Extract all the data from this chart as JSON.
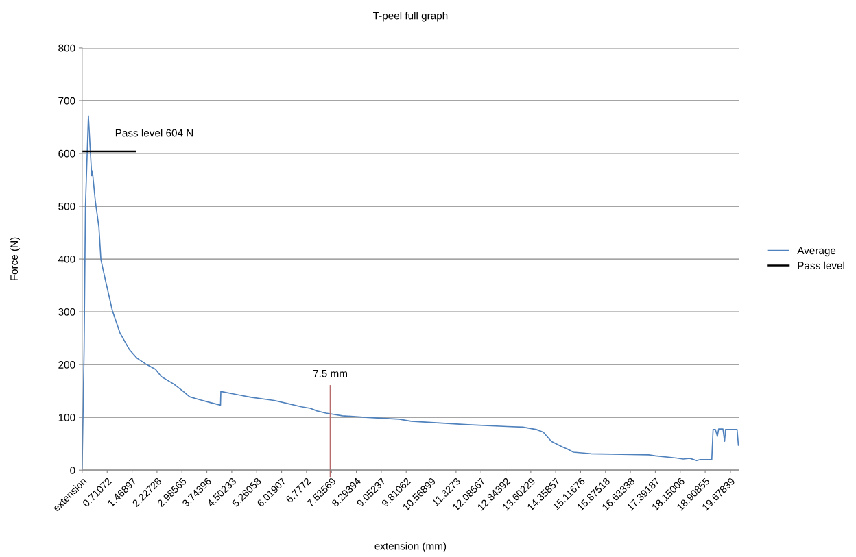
{
  "chart_data": {
    "type": "line",
    "title": "T-peel full graph",
    "xlabel": "extension (mm)",
    "ylabel": "Force (N)",
    "series": [
      {
        "name": "Average",
        "color": "#4f81bd",
        "x": [
          -0.05,
          0.01,
          0.05,
          0.14,
          0.24,
          0.26,
          0.35,
          0.46,
          0.52,
          0.65,
          0.87,
          1.1,
          1.39,
          1.62,
          1.91,
          2.18,
          2.36,
          2.74,
          3.03,
          3.22,
          3.55,
          3.85,
          4.16,
          4.17,
          4.75,
          5.09,
          5.79,
          6.21,
          6.62,
          6.89,
          7.1,
          7.37,
          7.87,
          8.56,
          9.6,
          9.96,
          10.65,
          11.69,
          12.88,
          13.36,
          13.77,
          13.98,
          14.23,
          14.55,
          14.71,
          14.9,
          15.44,
          16.36,
          17.19,
          17.4,
          18.03,
          18.24,
          18.44,
          18.65,
          18.76,
          19.11,
          19.15,
          19.22,
          19.28,
          19.32,
          19.45,
          19.5,
          19.53,
          19.88,
          19.92
        ],
        "values": [
          4,
          232,
          500,
          671,
          558,
          567,
          510,
          460,
          399,
          362,
          302,
          260,
          228,
          212,
          200,
          191,
          177,
          163,
          149,
          139,
          133,
          128,
          123,
          149,
          142,
          138,
          132,
          126,
          120,
          117,
          112,
          108,
          103,
          100,
          96.5,
          92.6,
          90,
          86,
          82.7,
          81.6,
          77,
          72,
          54.5,
          44.5,
          40,
          34,
          31,
          30,
          29,
          27,
          23,
          21,
          22.5,
          18,
          20,
          20,
          77,
          77,
          64,
          78,
          78,
          54.5,
          77,
          77,
          47
        ]
      },
      {
        "name": "Pass level",
        "color": "#000000",
        "x": [
          -0.05,
          1.56
        ],
        "values": [
          604,
          604
        ]
      }
    ],
    "annotations": [
      "Pass level 604 N"
    ],
    "ref_lines": [
      {
        "axis": "x",
        "value": 7.5,
        "label": "7.5 mm",
        "color": "#b86b6b"
      }
    ],
    "xlim": [
      -0.05,
      19.93
    ],
    "xticks": [
      {
        "value": -0.05,
        "label": "extension"
      },
      {
        "value": 0.71072,
        "label": "0.71072"
      },
      {
        "value": 1.46897,
        "label": "1.46897"
      },
      {
        "value": 2.22728,
        "label": "2.22728"
      },
      {
        "value": 2.98565,
        "label": "2.98565"
      },
      {
        "value": 3.74396,
        "label": "3.74396"
      },
      {
        "value": 4.50233,
        "label": "4.50233"
      },
      {
        "value": 5.26058,
        "label": "5.26058"
      },
      {
        "value": 6.01907,
        "label": "6.01907"
      },
      {
        "value": 6.7772,
        "label": "6.7772"
      },
      {
        "value": 7.53569,
        "label": "7.53569"
      },
      {
        "value": 8.29394,
        "label": "8.29394"
      },
      {
        "value": 9.05237,
        "label": "9.05237"
      },
      {
        "value": 9.81062,
        "label": "9.81062"
      },
      {
        "value": 10.56899,
        "label": "10.56899"
      },
      {
        "value": 11.3273,
        "label": "11.3273"
      },
      {
        "value": 12.08567,
        "label": "12.08567"
      },
      {
        "value": 12.84392,
        "label": "12.84392"
      },
      {
        "value": 13.60229,
        "label": "13.60229"
      },
      {
        "value": 14.35857,
        "label": "14.35857"
      },
      {
        "value": 15.11676,
        "label": "15.11676"
      },
      {
        "value": 15.87518,
        "label": "15.87518"
      },
      {
        "value": 16.63338,
        "label": "16.63338"
      },
      {
        "value": 17.39187,
        "label": "17.39187"
      },
      {
        "value": 18.15006,
        "label": "18.15006"
      },
      {
        "value": 18.90855,
        "label": "18.90855"
      },
      {
        "value": 19.67839,
        "label": "19.67839"
      }
    ],
    "ylim": [
      0,
      800
    ],
    "yticks": [
      0,
      100,
      200,
      300,
      400,
      500,
      600,
      700,
      800
    ],
    "grid": "y",
    "legend": "right",
    "marker": "none",
    "line_style": "solid"
  }
}
